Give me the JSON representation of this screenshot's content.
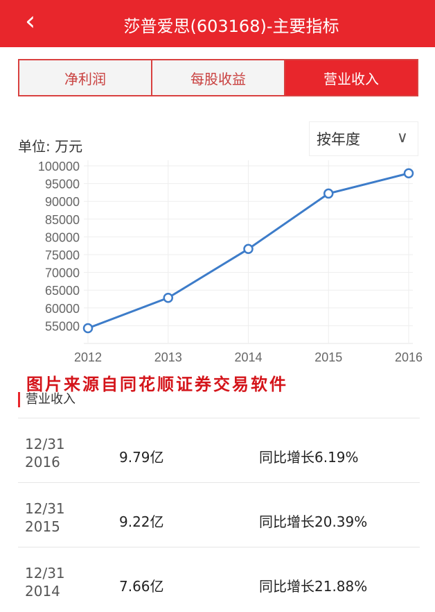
{
  "header": {
    "back_icon": "chevron-left-icon",
    "title": "莎普爱思(603168)-主要指标"
  },
  "tabs": [
    {
      "label": "净利润",
      "active": false
    },
    {
      "label": "每股收益",
      "active": false
    },
    {
      "label": "营业收入",
      "active": true
    }
  ],
  "unit_label": "单位: 万元",
  "period_select": {
    "value": "按年度",
    "icon": "chevron-down-icon"
  },
  "watermark": "图片来源自同花顺证券交易软件",
  "section_title": "营业收入",
  "rows": [
    {
      "date_line1": "12/31",
      "date_line2": "2016",
      "value": "9.79亿",
      "yoy": "同比增长6.19%"
    },
    {
      "date_line1": "12/31",
      "date_line2": "2015",
      "value": "9.22亿",
      "yoy": "同比增长20.39%"
    },
    {
      "date_line1": "12/31",
      "date_line2": "2014",
      "value": "7.66亿",
      "yoy": "同比增长21.88%"
    }
  ],
  "colors": {
    "brand": "#e8262c",
    "line": "#3d7cc9"
  },
  "chart_data": {
    "type": "line",
    "categories": [
      "2012",
      "2013",
      "2014",
      "2015",
      "2016"
    ],
    "values": [
      54300,
      62850,
      76600,
      92200,
      97900
    ],
    "yticks": [
      55000,
      60000,
      65000,
      70000,
      75000,
      80000,
      85000,
      90000,
      95000,
      100000
    ],
    "ylim": [
      50000,
      100000
    ],
    "grid": true
  }
}
